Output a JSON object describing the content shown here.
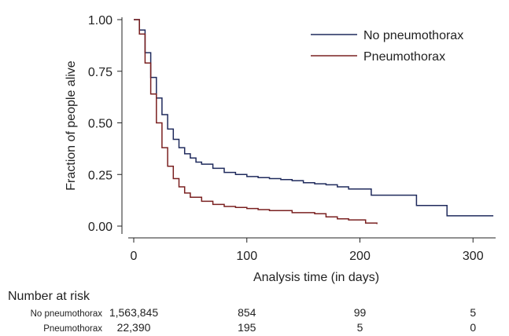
{
  "chart_data": {
    "type": "line",
    "subtype": "kaplan-meier-step",
    "xlabel": "Analysis time (in days)",
    "ylabel": "Fraction of people alive",
    "xlim": [
      0,
      320
    ],
    "ylim": [
      0,
      1.0
    ],
    "x_ticks": [
      0,
      100,
      200,
      300
    ],
    "x_tick_labels": [
      "0",
      "100",
      "200",
      "300"
    ],
    "y_ticks": [
      0,
      0.25,
      0.5,
      0.75,
      1.0
    ],
    "y_tick_labels": [
      "0.00",
      "0.25",
      "0.50",
      "0.75",
      "1.00"
    ],
    "grid": false,
    "legend_position": "top-right",
    "series": [
      {
        "name": "No pneumothorax",
        "color": "#1f2a5c",
        "x": [
          0,
          5,
          10,
          15,
          20,
          25,
          30,
          35,
          40,
          45,
          50,
          55,
          60,
          70,
          80,
          90,
          100,
          110,
          120,
          130,
          140,
          150,
          160,
          170,
          180,
          190,
          200,
          210,
          220,
          230,
          240,
          250,
          260,
          270,
          277,
          290,
          300,
          310,
          318
        ],
        "y": [
          1.0,
          0.95,
          0.84,
          0.72,
          0.62,
          0.54,
          0.47,
          0.42,
          0.38,
          0.35,
          0.33,
          0.31,
          0.3,
          0.28,
          0.26,
          0.25,
          0.24,
          0.235,
          0.23,
          0.225,
          0.22,
          0.21,
          0.205,
          0.2,
          0.19,
          0.18,
          0.18,
          0.15,
          0.15,
          0.15,
          0.15,
          0.1,
          0.1,
          0.1,
          0.05,
          0.05,
          0.05,
          0.05,
          0.05
        ]
      },
      {
        "name": "Pneumothorax",
        "color": "#7a2020",
        "x": [
          0,
          5,
          10,
          15,
          20,
          25,
          30,
          35,
          40,
          45,
          50,
          60,
          70,
          80,
          90,
          100,
          110,
          120,
          140,
          160,
          170,
          180,
          190,
          200,
          205,
          215
        ],
        "y": [
          1.0,
          0.93,
          0.79,
          0.64,
          0.5,
          0.38,
          0.29,
          0.23,
          0.19,
          0.16,
          0.14,
          0.12,
          0.105,
          0.095,
          0.09,
          0.085,
          0.08,
          0.075,
          0.065,
          0.06,
          0.045,
          0.035,
          0.03,
          0.03,
          0.015,
          0.01
        ]
      }
    ]
  },
  "risk_table": {
    "title": "Number at risk",
    "rows": [
      {
        "label": "No pneumothorax",
        "values": [
          "1,563,845",
          "854",
          "99",
          "5"
        ]
      },
      {
        "label": "Pneumothorax",
        "values": [
          "22,390",
          "195",
          "5",
          "0"
        ]
      }
    ]
  }
}
